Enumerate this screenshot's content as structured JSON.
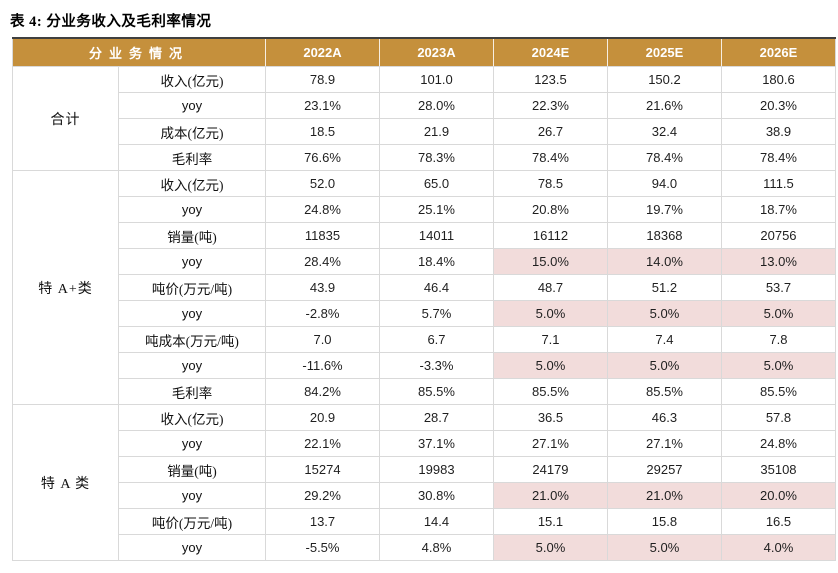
{
  "title": "表 4: 分业务收入及毛利率情况",
  "colors": {
    "header_bg": "#c5903c",
    "header_text": "#ffffff",
    "highlight_bg": "#f2dcdb",
    "grid_line": "#d9d9d9",
    "title_rule": "#3f3f3f"
  },
  "table": {
    "category_header": "分业务情况",
    "years": [
      "2022A",
      "2023A",
      "2024E",
      "2025E",
      "2026E"
    ],
    "groups": [
      {
        "name": "合计",
        "rows": [
          {
            "metric": "收入(亿元)",
            "values": [
              "78.9",
              "101.0",
              "123.5",
              "150.2",
              "180.6"
            ],
            "highlight": [
              0,
              0,
              0,
              0,
              0
            ]
          },
          {
            "metric": "yoy",
            "values": [
              "23.1%",
              "28.0%",
              "22.3%",
              "21.6%",
              "20.3%"
            ],
            "highlight": [
              0,
              0,
              0,
              0,
              0
            ]
          },
          {
            "metric": "成本(亿元)",
            "values": [
              "18.5",
              "21.9",
              "26.7",
              "32.4",
              "38.9"
            ],
            "highlight": [
              0,
              0,
              0,
              0,
              0
            ]
          },
          {
            "metric": "毛利率",
            "values": [
              "76.6%",
              "78.3%",
              "78.4%",
              "78.4%",
              "78.4%"
            ],
            "highlight": [
              0,
              0,
              0,
              0,
              0
            ]
          }
        ]
      },
      {
        "name": "特 A+类",
        "rows": [
          {
            "metric": "收入(亿元)",
            "values": [
              "52.0",
              "65.0",
              "78.5",
              "94.0",
              "111.5"
            ],
            "highlight": [
              0,
              0,
              0,
              0,
              0
            ]
          },
          {
            "metric": "yoy",
            "values": [
              "24.8%",
              "25.1%",
              "20.8%",
              "19.7%",
              "18.7%"
            ],
            "highlight": [
              0,
              0,
              0,
              0,
              0
            ]
          },
          {
            "metric": "销量(吨)",
            "values": [
              "11835",
              "14011",
              "16112",
              "18368",
              "20756"
            ],
            "highlight": [
              0,
              0,
              0,
              0,
              0
            ]
          },
          {
            "metric": "yoy",
            "values": [
              "28.4%",
              "18.4%",
              "15.0%",
              "14.0%",
              "13.0%"
            ],
            "highlight": [
              0,
              0,
              1,
              1,
              1
            ]
          },
          {
            "metric": "吨价(万元/吨)",
            "values": [
              "43.9",
              "46.4",
              "48.7",
              "51.2",
              "53.7"
            ],
            "highlight": [
              0,
              0,
              0,
              0,
              0
            ]
          },
          {
            "metric": "yoy",
            "values": [
              "-2.8%",
              "5.7%",
              "5.0%",
              "5.0%",
              "5.0%"
            ],
            "highlight": [
              0,
              0,
              1,
              1,
              1
            ]
          },
          {
            "metric": "吨成本(万元/吨)",
            "values": [
              "7.0",
              "6.7",
              "7.1",
              "7.4",
              "7.8"
            ],
            "highlight": [
              0,
              0,
              0,
              0,
              0
            ]
          },
          {
            "metric": "yoy",
            "values": [
              "-11.6%",
              "-3.3%",
              "5.0%",
              "5.0%",
              "5.0%"
            ],
            "highlight": [
              0,
              0,
              1,
              1,
              1
            ]
          },
          {
            "metric": "毛利率",
            "values": [
              "84.2%",
              "85.5%",
              "85.5%",
              "85.5%",
              "85.5%"
            ],
            "highlight": [
              0,
              0,
              0,
              0,
              0
            ]
          }
        ]
      },
      {
        "name": "特 A 类",
        "rows": [
          {
            "metric": "收入(亿元)",
            "values": [
              "20.9",
              "28.7",
              "36.5",
              "46.3",
              "57.8"
            ],
            "highlight": [
              0,
              0,
              0,
              0,
              0
            ]
          },
          {
            "metric": "yoy",
            "values": [
              "22.1%",
              "37.1%",
              "27.1%",
              "27.1%",
              "24.8%"
            ],
            "highlight": [
              0,
              0,
              0,
              0,
              0
            ]
          },
          {
            "metric": "销量(吨)",
            "values": [
              "15274",
              "19983",
              "24179",
              "29257",
              "35108"
            ],
            "highlight": [
              0,
              0,
              0,
              0,
              0
            ]
          },
          {
            "metric": "yoy",
            "values": [
              "29.2%",
              "30.8%",
              "21.0%",
              "21.0%",
              "20.0%"
            ],
            "highlight": [
              0,
              0,
              1,
              1,
              1
            ]
          },
          {
            "metric": "吨价(万元/吨)",
            "values": [
              "13.7",
              "14.4",
              "15.1",
              "15.8",
              "16.5"
            ],
            "highlight": [
              0,
              0,
              0,
              0,
              0
            ]
          },
          {
            "metric": "yoy",
            "values": [
              "-5.5%",
              "4.8%",
              "5.0%",
              "5.0%",
              "4.0%"
            ],
            "highlight": [
              0,
              0,
              1,
              1,
              1
            ]
          }
        ]
      }
    ]
  }
}
